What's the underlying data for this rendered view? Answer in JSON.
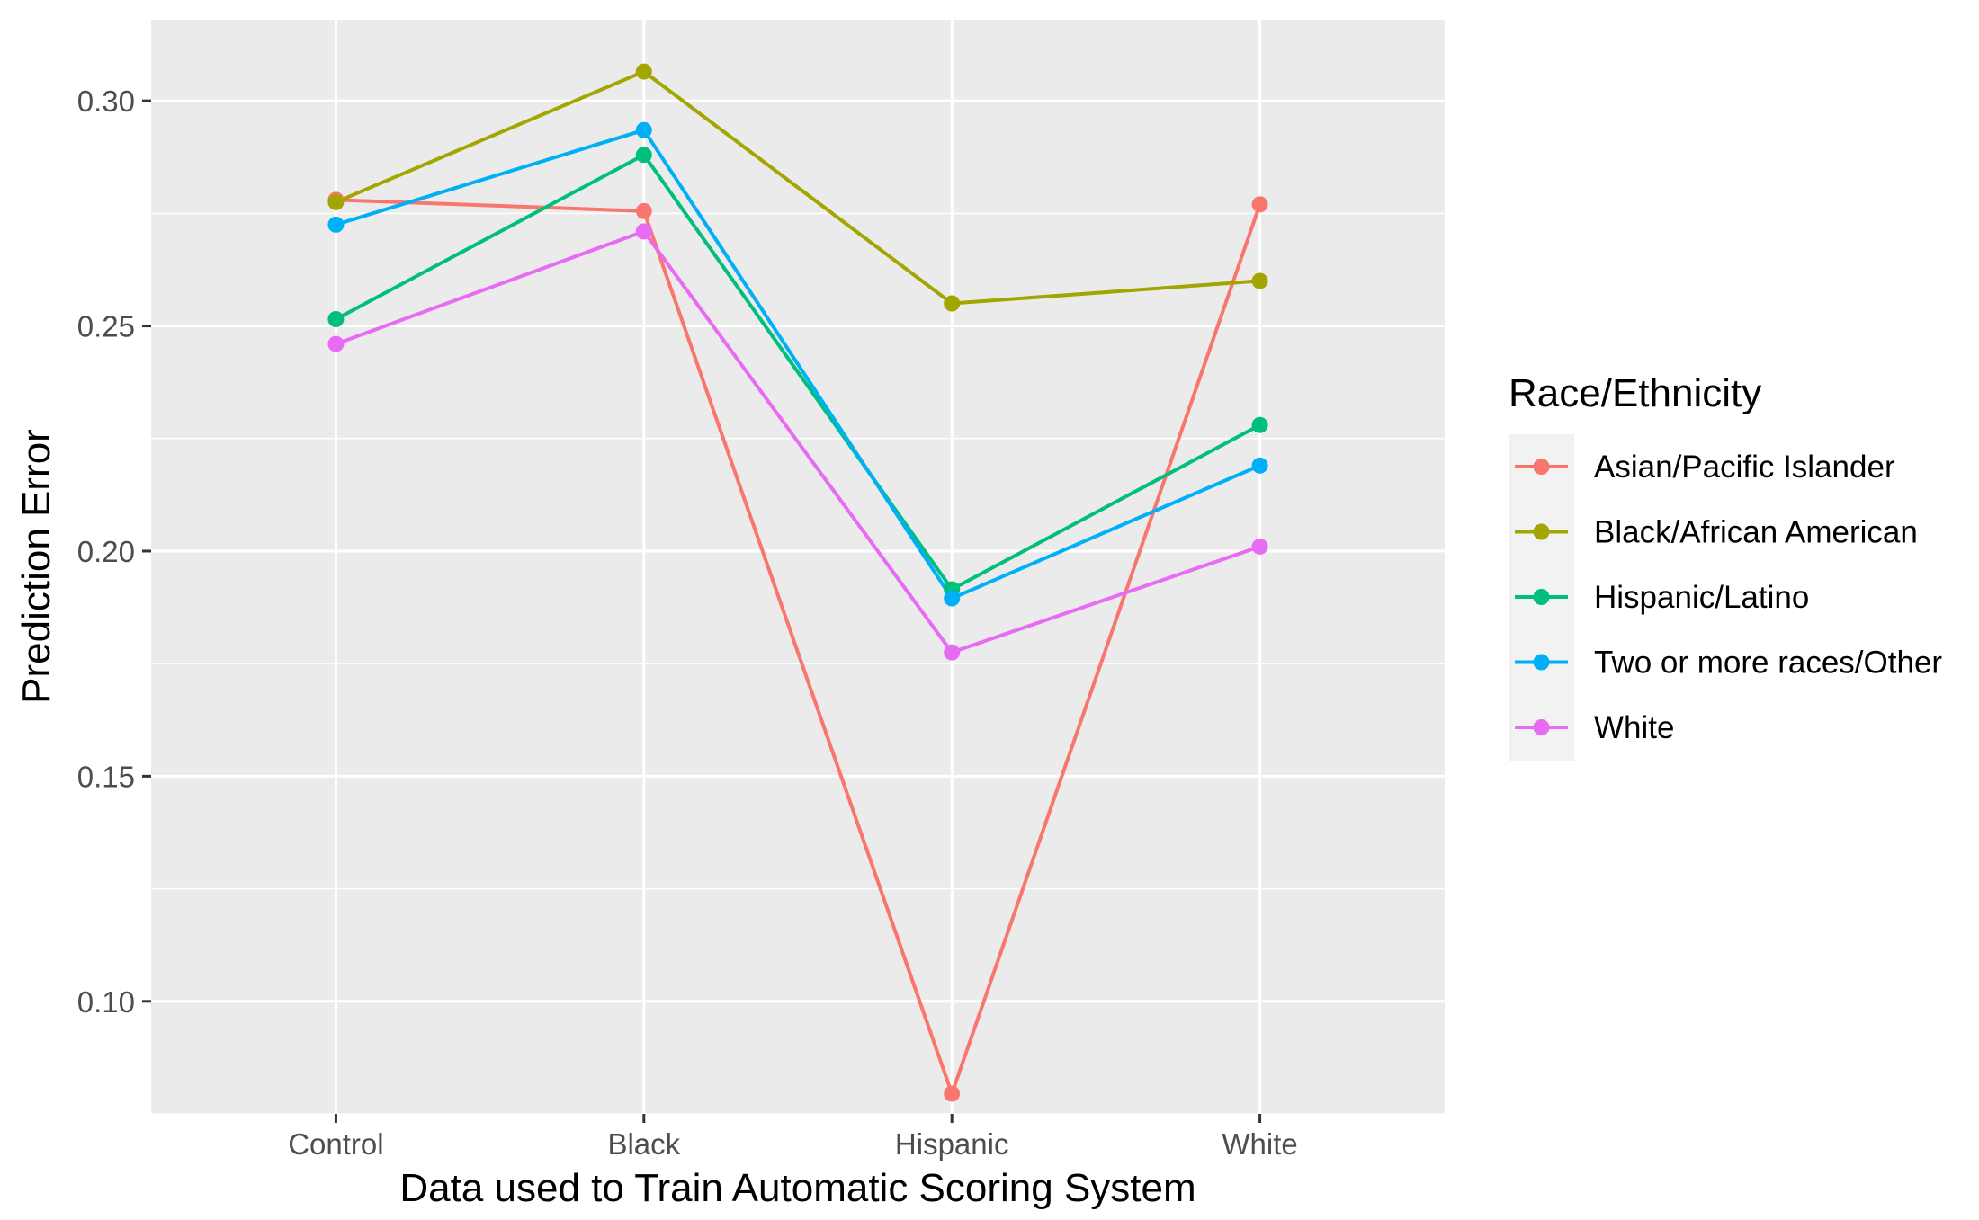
{
  "chart_data": {
    "type": "line",
    "xlabel": "Data used to Train Automatic Scoring System",
    "ylabel": "Prediction Error",
    "categories": [
      "Control",
      "Black",
      "Hispanic",
      "White"
    ],
    "ylim": [
      0.075,
      0.318
    ],
    "yticks": [
      0.1,
      0.15,
      0.2,
      0.25,
      0.3
    ],
    "ytick_labels": [
      "0.10",
      "0.15",
      "0.20",
      "0.25",
      "0.30"
    ],
    "grid": true,
    "legend": {
      "title": "Race/Ethnicity",
      "position": "right"
    },
    "series": [
      {
        "name": "Asian/Pacific Islander",
        "color": "#F8766D",
        "values": [
          0.278,
          0.2755,
          0.0795,
          0.277
        ]
      },
      {
        "name": "Black/African American",
        "color": "#A3A500",
        "values": [
          0.2775,
          0.3065,
          0.255,
          0.26
        ]
      },
      {
        "name": "Hispanic/Latino",
        "color": "#00BF7D",
        "values": [
          0.2515,
          0.288,
          0.1915,
          0.228
        ]
      },
      {
        "name": "Two or more races/Other",
        "color": "#00B0F6",
        "values": [
          0.2725,
          0.2935,
          0.1895,
          0.219
        ]
      },
      {
        "name": "White",
        "color": "#E76BF3",
        "values": [
          0.246,
          0.271,
          0.1775,
          0.201
        ]
      }
    ]
  }
}
